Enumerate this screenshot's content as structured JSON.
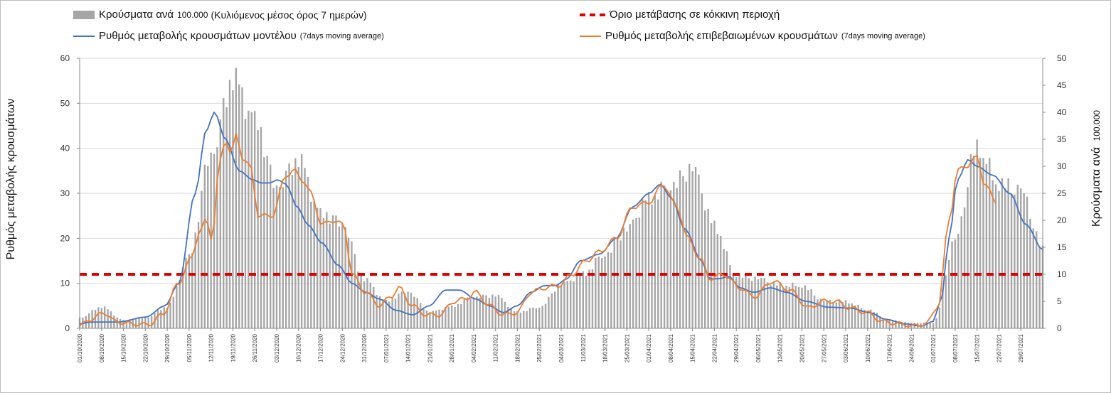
{
  "legend": {
    "bars_label": "Κρούσματα ανά",
    "bars_unit": "100.000",
    "bars_suffix": "(Κυλιόμενος μέσος όρος 7 ημερών)",
    "threshold_label": "Όριο μετάβασης σε κόκκινη περιοχή",
    "model_label": "Ρυθμός μεταβολής κρουσμάτων μοντέλου",
    "model_suffix": "(7days moving average)",
    "confirmed_label": "Ρυθμός μεταβολής επιβεβαιωμένων κρουσμάτων",
    "confirmed_suffix": "(7days moving average)"
  },
  "axes": {
    "left_label": "Ρυθμός μεταβολής κρουσμάτων",
    "right_label": "Κρούσματα ανά",
    "right_label_unit": "100.000"
  },
  "chart_data": {
    "type": "bar",
    "colors": {
      "bars": "#a6a6a6",
      "model": "#4472c4",
      "confirmed": "#ed7d31",
      "threshold": "#e00000",
      "grid": "#d9d9d9"
    },
    "left_axis": {
      "range": [
        0,
        60
      ],
      "ticks": [
        0,
        10,
        20,
        30,
        40,
        50,
        60
      ]
    },
    "right_axis": {
      "range": [
        0,
        50
      ],
      "ticks": [
        0,
        5,
        10,
        15,
        20,
        25,
        30,
        35,
        40,
        45,
        50
      ]
    },
    "grid": true,
    "legend_position": "top",
    "x_tick_labels": [
      "01/10/2020",
      "08/10/2020",
      "15/10/2020",
      "22/10/2020",
      "29/10/2020",
      "05/11/2020",
      "12/11/2020",
      "19/11/2020",
      "26/11/2020",
      "03/12/2020",
      "10/12/2020",
      "17/12/2020",
      "24/12/2020",
      "31/12/2020",
      "07/01/2021",
      "14/01/2021",
      "21/01/2021",
      "28/01/2021",
      "04/02/2021",
      "11/02/2021",
      "18/02/2021",
      "25/02/2021",
      "04/03/2021",
      "11/03/2021",
      "18/03/2021",
      "25/03/2021",
      "01/04/2021",
      "08/04/2021",
      "15/04/2021",
      "22/04/2021",
      "29/04/2021",
      "06/05/2021",
      "13/05/2021",
      "20/05/2021",
      "27/05/2021",
      "03/06/2021",
      "10/06/2021",
      "17/06/2021",
      "24/06/2021",
      "01/07/2021",
      "08/07/2021",
      "15/07/2021",
      "22/07/2021",
      "29/07/2021"
    ],
    "threshold": 12,
    "series": [
      {
        "name": "Κρούσματα ανά 100.000 (Κυλιόμενος μέσος όρος 7 ημερών)",
        "axis": "right",
        "kind": "bar",
        "x_start": "01/10/2020",
        "x_end": "05/08/2021",
        "keyframes": [
          [
            0,
            2
          ],
          [
            7,
            4
          ],
          [
            14,
            1.5
          ],
          [
            21,
            2
          ],
          [
            28,
            4
          ],
          [
            35,
            13
          ],
          [
            42,
            33
          ],
          [
            49,
            46
          ],
          [
            56,
            38
          ],
          [
            63,
            27
          ],
          [
            70,
            31
          ],
          [
            77,
            21
          ],
          [
            84,
            20
          ],
          [
            91,
            9
          ],
          [
            98,
            5
          ],
          [
            105,
            7
          ],
          [
            112,
            3
          ],
          [
            119,
            4
          ],
          [
            126,
            6
          ],
          [
            133,
            6
          ],
          [
            140,
            3
          ],
          [
            147,
            4
          ],
          [
            154,
            8
          ],
          [
            161,
            10
          ],
          [
            168,
            14
          ],
          [
            175,
            18
          ],
          [
            182,
            24
          ],
          [
            189,
            27
          ],
          [
            196,
            29
          ],
          [
            203,
            19
          ],
          [
            210,
            10
          ],
          [
            217,
            9
          ],
          [
            224,
            8
          ],
          [
            231,
            8
          ],
          [
            238,
            5
          ],
          [
            245,
            5
          ],
          [
            252,
            3.5
          ],
          [
            259,
            1.5
          ],
          [
            266,
            1
          ],
          [
            273,
            1
          ],
          [
            280,
            16
          ],
          [
            287,
            34
          ],
          [
            294,
            27
          ],
          [
            301,
            25
          ],
          [
            308,
            15
          ]
        ]
      },
      {
        "name": "Ρυθμός μεταβολής κρουσμάτων μοντέλου",
        "axis": "left",
        "kind": "line",
        "keyframes": [
          [
            0,
            1
          ],
          [
            4,
            1.4
          ],
          [
            14,
            1.4
          ],
          [
            24,
            2.5
          ],
          [
            31,
            5
          ],
          [
            36,
            10
          ],
          [
            42,
            30
          ],
          [
            46,
            44
          ],
          [
            49,
            48
          ],
          [
            53,
            42
          ],
          [
            58,
            35
          ],
          [
            63,
            33
          ],
          [
            66,
            32.3
          ],
          [
            69,
            32.3
          ],
          [
            72,
            33
          ],
          [
            75,
            32
          ],
          [
            79,
            27
          ],
          [
            83,
            23
          ],
          [
            88,
            19
          ],
          [
            94,
            14
          ],
          [
            99,
            10
          ],
          [
            104,
            8
          ],
          [
            109,
            6.5
          ],
          [
            115,
            4
          ],
          [
            121,
            3
          ],
          [
            127,
            5
          ],
          [
            133,
            8.5
          ],
          [
            138,
            8.5
          ],
          [
            144,
            6.5
          ],
          [
            149,
            5
          ],
          [
            154,
            3.5
          ],
          [
            159,
            5
          ],
          [
            164,
            8
          ],
          [
            169,
            9.5
          ],
          [
            173,
            9.5
          ],
          [
            177,
            11
          ],
          [
            182,
            15
          ],
          [
            189,
            16.5
          ],
          [
            195,
            20
          ],
          [
            201,
            27
          ],
          [
            207,
            30
          ],
          [
            211,
            32
          ],
          [
            215,
            29
          ],
          [
            220,
            22
          ],
          [
            226,
            15
          ],
          [
            229,
            11
          ],
          [
            232,
            11
          ],
          [
            236,
            11.5
          ],
          [
            240,
            9
          ],
          [
            245,
            8
          ],
          [
            251,
            9
          ],
          [
            257,
            8
          ],
          [
            264,
            6
          ],
          [
            272,
            4.7
          ],
          [
            280,
            4.5
          ],
          [
            287,
            3.5
          ],
          [
            293,
            2
          ],
          [
            300,
            1
          ],
          [
            306,
            0.5
          ],
          [
            310,
            1.5
          ],
          [
            313,
            6
          ],
          [
            316,
            20
          ],
          [
            319,
            33
          ],
          [
            323,
            37.5
          ],
          [
            326,
            36
          ],
          [
            332,
            34
          ],
          [
            338,
            30
          ],
          [
            344,
            23
          ],
          [
            350,
            17.5
          ]
        ]
      },
      {
        "name": "Ρυθμός μεταβολής επιβεβαιωμένων κρουσμάτων",
        "axis": "left",
        "kind": "line",
        "end_index": 333,
        "keyframes": [
          [
            0,
            0.5
          ],
          [
            4,
            2
          ],
          [
            9,
            3.5
          ],
          [
            13,
            1.5
          ],
          [
            19,
            1
          ],
          [
            25,
            0.8
          ],
          [
            30,
            3
          ],
          [
            36,
            10
          ],
          [
            40,
            15
          ],
          [
            44,
            22
          ],
          [
            46,
            24
          ],
          [
            48,
            20
          ],
          [
            51,
            37
          ],
          [
            53,
            42
          ],
          [
            55,
            39
          ],
          [
            57,
            43
          ],
          [
            59,
            38
          ],
          [
            62,
            36
          ],
          [
            65,
            25
          ],
          [
            70,
            25
          ],
          [
            75,
            34
          ],
          [
            78,
            35
          ],
          [
            81,
            33
          ],
          [
            84,
            30
          ],
          [
            88,
            23
          ],
          [
            92,
            24
          ],
          [
            96,
            23
          ],
          [
            99,
            12
          ],
          [
            104,
            8
          ],
          [
            109,
            5
          ],
          [
            113,
            7
          ],
          [
            116,
            9
          ],
          [
            121,
            5
          ],
          [
            126,
            3
          ],
          [
            131,
            3
          ],
          [
            136,
            6
          ],
          [
            140,
            6.5
          ],
          [
            144,
            8
          ],
          [
            149,
            5
          ],
          [
            154,
            3
          ],
          [
            159,
            3.5
          ],
          [
            164,
            8
          ],
          [
            169,
            9
          ],
          [
            174,
            9.5
          ],
          [
            179,
            12
          ],
          [
            184,
            15
          ],
          [
            189,
            17
          ],
          [
            195,
            20
          ],
          [
            201,
            27
          ],
          [
            207,
            28
          ],
          [
            212,
            32
          ],
          [
            217,
            27
          ],
          [
            221,
            20
          ],
          [
            226,
            15
          ],
          [
            229,
            11
          ],
          [
            234,
            12
          ],
          [
            240,
            9
          ],
          [
            245,
            7
          ],
          [
            252,
            10.5
          ],
          [
            258,
            8.5
          ],
          [
            265,
            4.5
          ],
          [
            270,
            6
          ],
          [
            275,
            6
          ],
          [
            280,
            4.5
          ],
          [
            286,
            3.5
          ],
          [
            292,
            1.5
          ],
          [
            298,
            1
          ],
          [
            304,
            0.5
          ],
          [
            308,
            1.2
          ],
          [
            312,
            5
          ],
          [
            316,
            24
          ],
          [
            319,
            35
          ],
          [
            322,
            36
          ],
          [
            326,
            38
          ],
          [
            329,
            32
          ],
          [
            333,
            28
          ]
        ]
      }
    ]
  }
}
